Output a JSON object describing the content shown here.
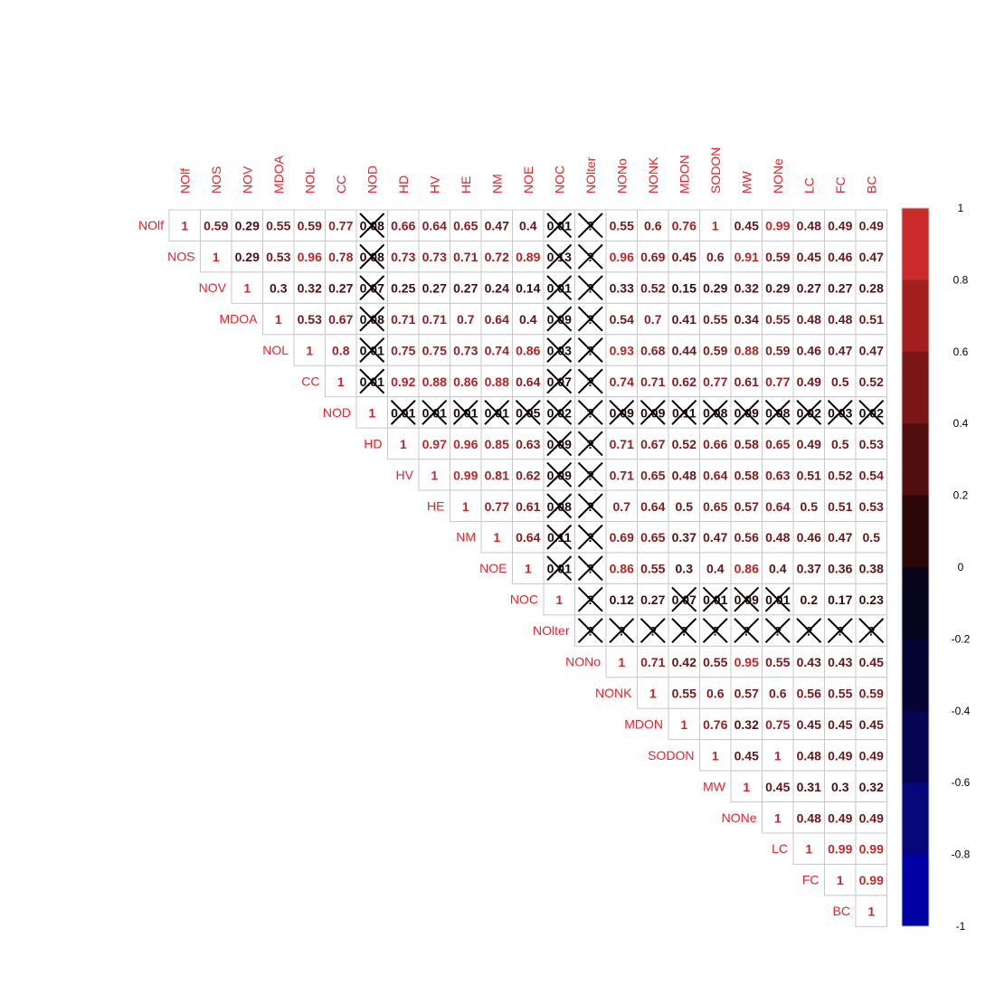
{
  "chart_data": {
    "type": "heatmap",
    "layout": "upper-triangle correlation matrix",
    "variables": [
      "NOlf",
      "NOS",
      "NOV",
      "MDOA",
      "NOL",
      "CC",
      "NOD",
      "HD",
      "HV",
      "HE",
      "NM",
      "NOE",
      "NOC",
      "NOlter",
      "NONo",
      "NONK",
      "MDON",
      "SODON",
      "MW",
      "NONe",
      "LC",
      "FC",
      "BC"
    ],
    "rows": [
      [
        1,
        0.59,
        0.29,
        0.55,
        0.59,
        0.77,
        0.08,
        0.66,
        0.64,
        0.65,
        0.47,
        0.4,
        0.01,
        "?",
        0.55,
        0.6,
        0.76,
        1,
        0.45,
        0.99,
        0.48,
        0.49,
        0.49
      ],
      [
        null,
        1,
        0.29,
        0.53,
        0.96,
        0.78,
        0.08,
        0.73,
        0.73,
        0.71,
        0.72,
        0.89,
        0.13,
        "?",
        0.96,
        0.69,
        0.45,
        0.6,
        0.91,
        0.59,
        0.45,
        0.46,
        0.47
      ],
      [
        null,
        null,
        1,
        0.3,
        0.32,
        0.27,
        0.07,
        0.25,
        0.27,
        0.27,
        0.24,
        0.14,
        0.01,
        "?",
        0.33,
        0.52,
        0.15,
        0.29,
        0.32,
        0.29,
        0.27,
        0.27,
        0.28
      ],
      [
        null,
        null,
        null,
        1,
        0.53,
        0.67,
        0.08,
        0.71,
        0.71,
        0.7,
        0.64,
        0.4,
        0.09,
        "?",
        0.54,
        0.7,
        0.41,
        0.55,
        0.34,
        0.55,
        0.48,
        0.48,
        0.51
      ],
      [
        null,
        null,
        null,
        null,
        1,
        0.8,
        0.01,
        0.75,
        0.75,
        0.73,
        0.74,
        0.86,
        0.03,
        "?",
        0.93,
        0.68,
        0.44,
        0.59,
        0.88,
        0.59,
        0.46,
        0.47,
        0.47
      ],
      [
        null,
        null,
        null,
        null,
        null,
        1,
        0.01,
        0.92,
        0.88,
        0.86,
        0.88,
        0.64,
        0.07,
        "?",
        0.74,
        0.71,
        0.62,
        0.77,
        0.61,
        0.77,
        0.49,
        0.5,
        0.52
      ],
      [
        null,
        null,
        null,
        null,
        null,
        null,
        1,
        0.01,
        0.01,
        0.01,
        0.01,
        0.05,
        0.02,
        "?",
        0.09,
        0.09,
        0.11,
        0.08,
        0.09,
        0.08,
        0.02,
        0.03,
        0.02
      ],
      [
        null,
        null,
        null,
        null,
        null,
        null,
        null,
        1,
        0.97,
        0.96,
        0.85,
        0.63,
        0.09,
        "?",
        0.71,
        0.67,
        0.52,
        0.66,
        0.58,
        0.65,
        0.49,
        0.5,
        0.53
      ],
      [
        null,
        null,
        null,
        null,
        null,
        null,
        null,
        null,
        1,
        0.99,
        0.81,
        0.62,
        0.09,
        "?",
        0.71,
        0.65,
        0.48,
        0.64,
        0.58,
        0.63,
        0.51,
        0.52,
        0.54
      ],
      [
        null,
        null,
        null,
        null,
        null,
        null,
        null,
        null,
        null,
        1,
        0.77,
        0.61,
        0.08,
        "?",
        0.7,
        0.64,
        0.5,
        0.65,
        0.57,
        0.64,
        0.5,
        0.51,
        0.53
      ],
      [
        null,
        null,
        null,
        null,
        null,
        null,
        null,
        null,
        null,
        null,
        1,
        0.64,
        0.11,
        "?",
        0.69,
        0.65,
        0.37,
        0.47,
        0.56,
        0.48,
        0.46,
        0.47,
        0.5
      ],
      [
        null,
        null,
        null,
        null,
        null,
        null,
        null,
        null,
        null,
        null,
        null,
        1,
        0.01,
        "?",
        0.86,
        0.55,
        0.3,
        0.4,
        0.86,
        0.4,
        0.37,
        0.36,
        0.38
      ],
      [
        null,
        null,
        null,
        null,
        null,
        null,
        null,
        null,
        null,
        null,
        null,
        null,
        1,
        "?",
        0.12,
        0.27,
        0.07,
        0.01,
        0.09,
        0.01,
        0.2,
        0.17,
        0.23
      ],
      [
        null,
        null,
        null,
        null,
        null,
        null,
        null,
        null,
        null,
        null,
        null,
        null,
        null,
        "?",
        "?",
        "?",
        "?",
        "?",
        "?",
        "?",
        "?",
        "?",
        "?"
      ],
      [
        null,
        null,
        null,
        null,
        null,
        null,
        null,
        null,
        null,
        null,
        null,
        null,
        null,
        null,
        1,
        0.71,
        0.42,
        0.55,
        0.95,
        0.55,
        0.43,
        0.43,
        0.45
      ],
      [
        null,
        null,
        null,
        null,
        null,
        null,
        null,
        null,
        null,
        null,
        null,
        null,
        null,
        null,
        null,
        1,
        0.55,
        0.6,
        0.57,
        0.6,
        0.56,
        0.55,
        0.59
      ],
      [
        null,
        null,
        null,
        null,
        null,
        null,
        null,
        null,
        null,
        null,
        null,
        null,
        null,
        null,
        null,
        null,
        1,
        0.76,
        0.32,
        0.75,
        0.45,
        0.45,
        0.45
      ],
      [
        null,
        null,
        null,
        null,
        null,
        null,
        null,
        null,
        null,
        null,
        null,
        null,
        null,
        null,
        null,
        null,
        null,
        1,
        0.45,
        1,
        0.48,
        0.49,
        0.49
      ],
      [
        null,
        null,
        null,
        null,
        null,
        null,
        null,
        null,
        null,
        null,
        null,
        null,
        null,
        null,
        null,
        null,
        null,
        null,
        1,
        0.45,
        0.31,
        0.3,
        0.32
      ],
      [
        null,
        null,
        null,
        null,
        null,
        null,
        null,
        null,
        null,
        null,
        null,
        null,
        null,
        null,
        null,
        null,
        null,
        null,
        null,
        1,
        0.48,
        0.49,
        0.49
      ],
      [
        null,
        null,
        null,
        null,
        null,
        null,
        null,
        null,
        null,
        null,
        null,
        null,
        null,
        null,
        null,
        null,
        null,
        null,
        null,
        null,
        1,
        0.99,
        0.99
      ],
      [
        null,
        null,
        null,
        null,
        null,
        null,
        null,
        null,
        null,
        null,
        null,
        null,
        null,
        null,
        null,
        null,
        null,
        null,
        null,
        null,
        null,
        1,
        0.99
      ],
      [
        null,
        null,
        null,
        null,
        null,
        null,
        null,
        null,
        null,
        null,
        null,
        null,
        null,
        null,
        null,
        null,
        null,
        null,
        null,
        null,
        null,
        null,
        1
      ]
    ],
    "crossed_out": [
      [
        0,
        6
      ],
      [
        0,
        12
      ],
      [
        0,
        13
      ],
      [
        1,
        6
      ],
      [
        1,
        12
      ],
      [
        1,
        13
      ],
      [
        2,
        6
      ],
      [
        2,
        12
      ],
      [
        2,
        13
      ],
      [
        3,
        6
      ],
      [
        3,
        12
      ],
      [
        3,
        13
      ],
      [
        4,
        6
      ],
      [
        4,
        12
      ],
      [
        4,
        13
      ],
      [
        5,
        6
      ],
      [
        5,
        12
      ],
      [
        5,
        13
      ],
      [
        6,
        7
      ],
      [
        6,
        8
      ],
      [
        6,
        9
      ],
      [
        6,
        10
      ],
      [
        6,
        11
      ],
      [
        6,
        12
      ],
      [
        6,
        13
      ],
      [
        6,
        14
      ],
      [
        6,
        15
      ],
      [
        6,
        16
      ],
      [
        6,
        17
      ],
      [
        6,
        18
      ],
      [
        6,
        19
      ],
      [
        6,
        20
      ],
      [
        6,
        21
      ],
      [
        6,
        22
      ],
      [
        7,
        12
      ],
      [
        7,
        13
      ],
      [
        8,
        12
      ],
      [
        8,
        13
      ],
      [
        9,
        12
      ],
      [
        9,
        13
      ],
      [
        10,
        12
      ],
      [
        10,
        13
      ],
      [
        11,
        12
      ],
      [
        11,
        13
      ],
      [
        12,
        13
      ],
      [
        12,
        16
      ],
      [
        12,
        17
      ],
      [
        12,
        18
      ],
      [
        12,
        19
      ],
      [
        13,
        13
      ],
      [
        13,
        14
      ],
      [
        13,
        15
      ],
      [
        13,
        16
      ],
      [
        13,
        17
      ],
      [
        13,
        18
      ],
      [
        13,
        19
      ],
      [
        13,
        20
      ],
      [
        13,
        21
      ],
      [
        13,
        22
      ]
    ],
    "colorbar": {
      "range": [
        -1,
        1
      ],
      "tick_labels": [
        "1",
        "0.8",
        "0.6",
        "0.4",
        "0.2",
        "0",
        "-0.2",
        "-0.4",
        "-0.6",
        "-0.8",
        "-1"
      ],
      "steps": [
        "#CB2A2A",
        "#A31F1F",
        "#7A1616",
        "#520E0E",
        "#2A0606",
        "#06051C",
        "#050433",
        "#060553",
        "#06077A",
        "#0000A4"
      ]
    },
    "label_color": "#E8232A",
    "cross_color": "#000000"
  }
}
